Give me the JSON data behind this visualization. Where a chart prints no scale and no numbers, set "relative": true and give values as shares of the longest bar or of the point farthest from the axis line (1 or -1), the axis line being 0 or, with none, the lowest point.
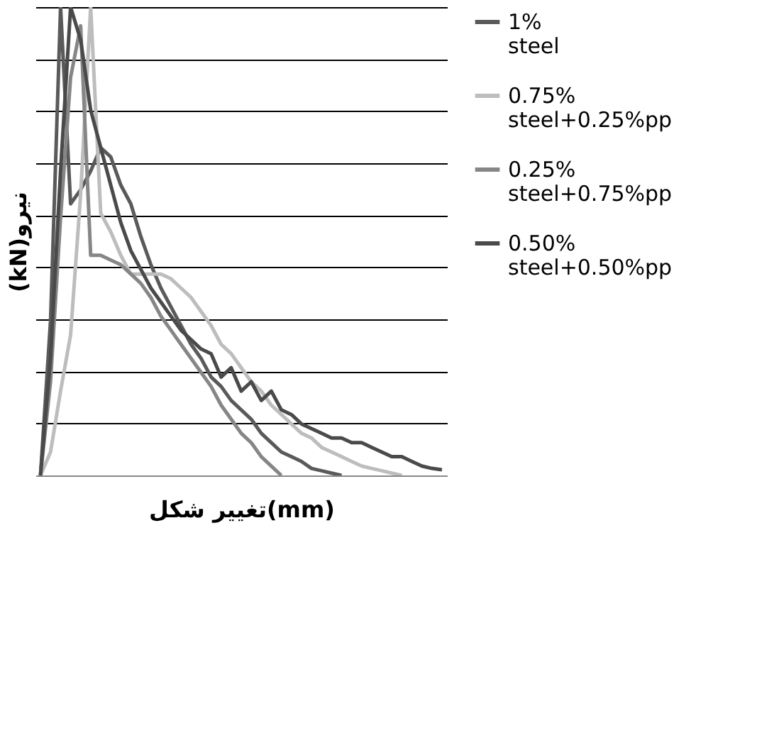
{
  "chart_data": {
    "type": "line",
    "relative": true,
    "xlabel": "تغییر شکل(mm)",
    "ylabel": "(kN)نیرو",
    "grid": "y",
    "legend": "right",
    "line_style": "solid",
    "categories": [
      null,
      null,
      null,
      null,
      null,
      null,
      null,
      null,
      null,
      null,
      null,
      null,
      null,
      null,
      null,
      null,
      null,
      null,
      null,
      null,
      null,
      null,
      null,
      null,
      null,
      null,
      null,
      null,
      null,
      null,
      null,
      null,
      null,
      null,
      null,
      null,
      null,
      null,
      null,
      null,
      null
    ],
    "series": [
      {
        "name": "1% steel",
        "color": "#5a5a5a",
        "values": [
          0,
          0.33,
          1.0,
          0.58,
          0.61,
          0.65,
          0.7,
          0.68,
          0.62,
          0.58,
          0.51,
          0.45,
          0.4,
          0.36,
          0.32,
          0.28,
          0.25,
          0.21,
          0.19,
          0.16,
          0.14,
          0.12,
          0.09,
          0.07,
          0.05,
          0.04,
          0.03,
          0.015,
          0.01,
          0.005,
          0,
          null,
          null,
          null,
          null,
          null,
          null,
          null,
          null,
          null,
          null
        ]
      },
      {
        "name": "0.75% steel+0.25%pp",
        "color": "#bdbdbd",
        "values": [
          0,
          0.05,
          0.18,
          0.3,
          0.6,
          1.0,
          0.56,
          0.52,
          0.47,
          0.43,
          0.43,
          0.43,
          0.43,
          0.42,
          0.4,
          0.38,
          0.35,
          0.32,
          0.28,
          0.26,
          0.23,
          0.2,
          0.18,
          0.15,
          0.13,
          0.11,
          0.09,
          0.08,
          0.06,
          0.05,
          0.04,
          0.03,
          0.02,
          0.015,
          0.01,
          0.005,
          0,
          null,
          null,
          null,
          null
        ]
      },
      {
        "name": "0.25% steel+0.75%pp",
        "color": "#868686",
        "values": [
          0,
          0.2,
          0.55,
          0.85,
          0.96,
          0.47,
          0.47,
          0.46,
          0.45,
          0.43,
          0.41,
          0.38,
          0.34,
          0.31,
          0.28,
          0.25,
          0.22,
          0.19,
          0.15,
          0.12,
          0.09,
          0.07,
          0.04,
          0.02,
          0,
          null,
          null,
          null,
          null,
          null,
          null,
          null,
          null,
          null,
          null,
          null,
          null,
          null,
          null,
          null,
          null
        ]
      },
      {
        "name": "0.50% steel+0.50%pp",
        "color": "#4a4a4a",
        "values": [
          0,
          0.25,
          0.65,
          1.0,
          0.93,
          0.78,
          0.7,
          0.62,
          0.54,
          0.48,
          0.44,
          0.4,
          0.37,
          0.34,
          0.31,
          0.29,
          0.27,
          0.26,
          0.21,
          0.23,
          0.18,
          0.2,
          0.16,
          0.18,
          0.14,
          0.13,
          0.11,
          0.1,
          0.09,
          0.08,
          0.08,
          0.07,
          0.07,
          0.06,
          0.05,
          0.04,
          0.04,
          0.03,
          0.02,
          0.015,
          0.012
        ]
      }
    ]
  }
}
